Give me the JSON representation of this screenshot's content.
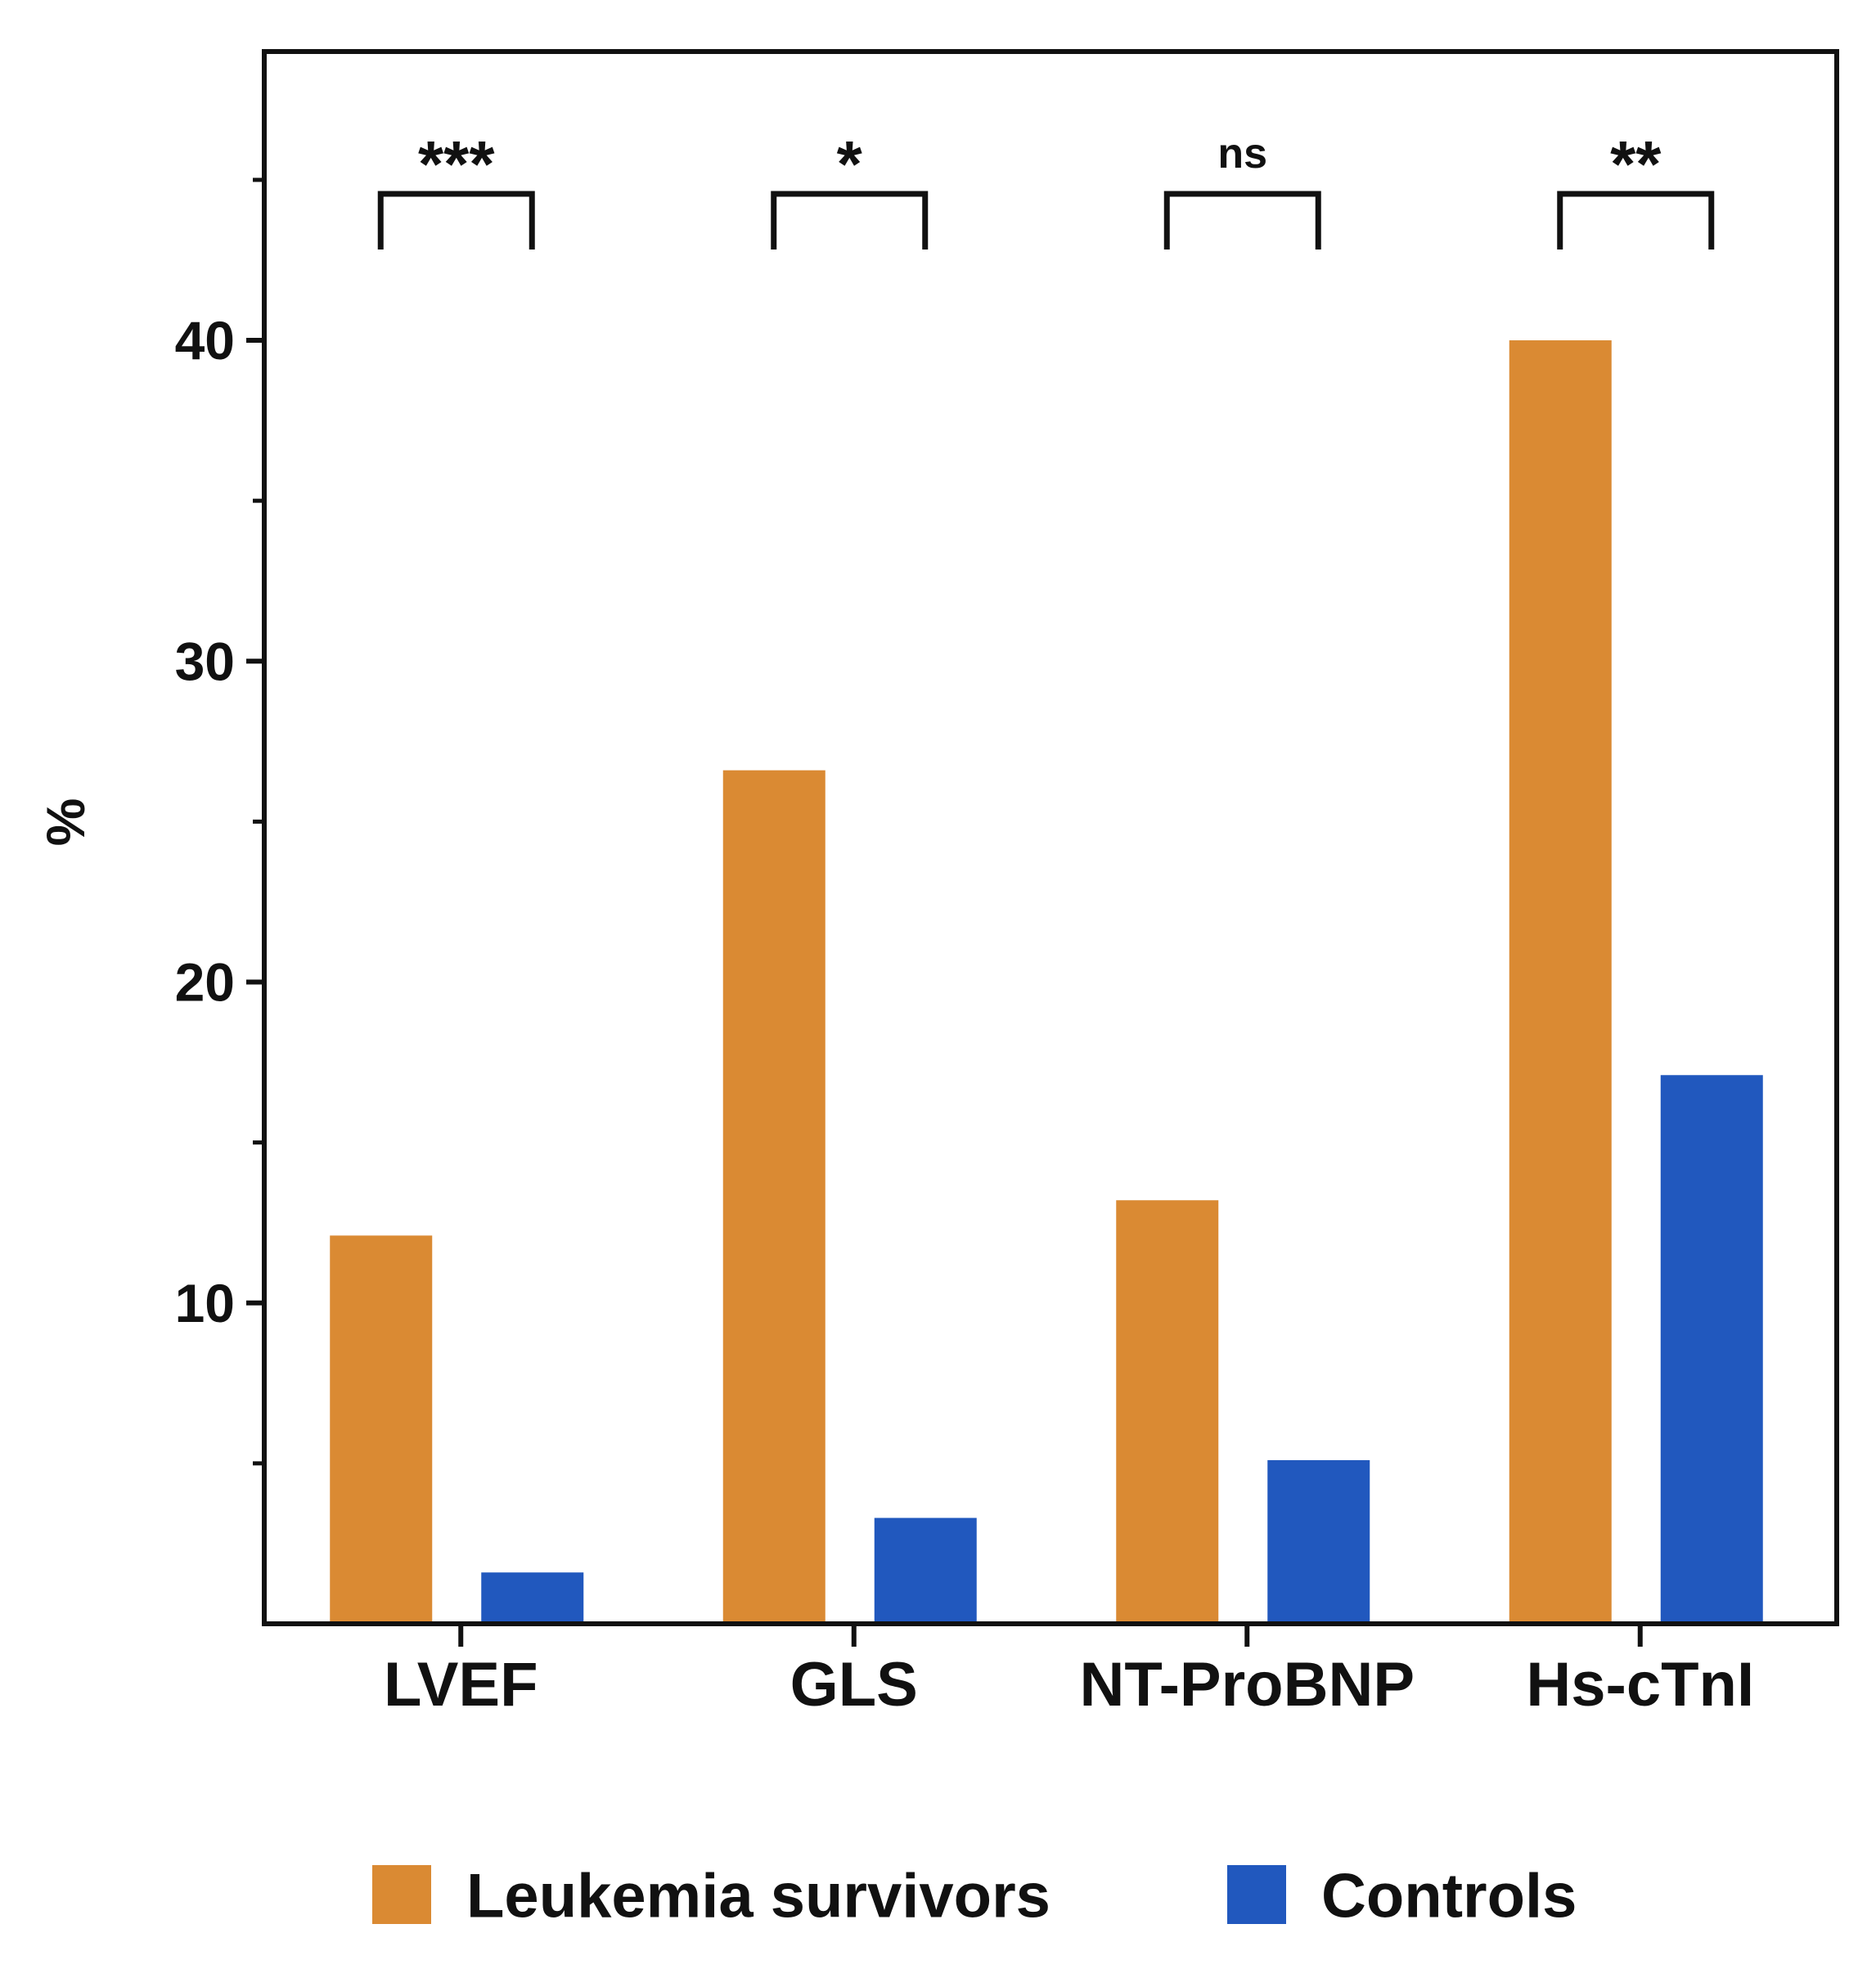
{
  "chart_data": {
    "type": "bar",
    "title": "",
    "xlabel": "",
    "ylabel": "%",
    "ylim": [
      0,
      49
    ],
    "yticks": [
      10,
      20,
      30,
      40
    ],
    "minor_yticks": [
      5,
      15,
      25,
      35,
      45
    ],
    "grid": false,
    "categories": [
      "LVEF",
      "GLS",
      "NT-ProBNP",
      "Hs-cTnI"
    ],
    "series": [
      {
        "name": "Leukemia survivors",
        "color": "#DA8A33",
        "values": [
          12.1,
          26.6,
          13.2,
          40.0
        ]
      },
      {
        "name": "Controls",
        "color": "#2158BE",
        "values": [
          1.6,
          3.3,
          5.1,
          17.1
        ]
      }
    ],
    "significance": [
      "***",
      "*",
      "ns",
      "**"
    ],
    "legend_position": "bottom-center"
  }
}
